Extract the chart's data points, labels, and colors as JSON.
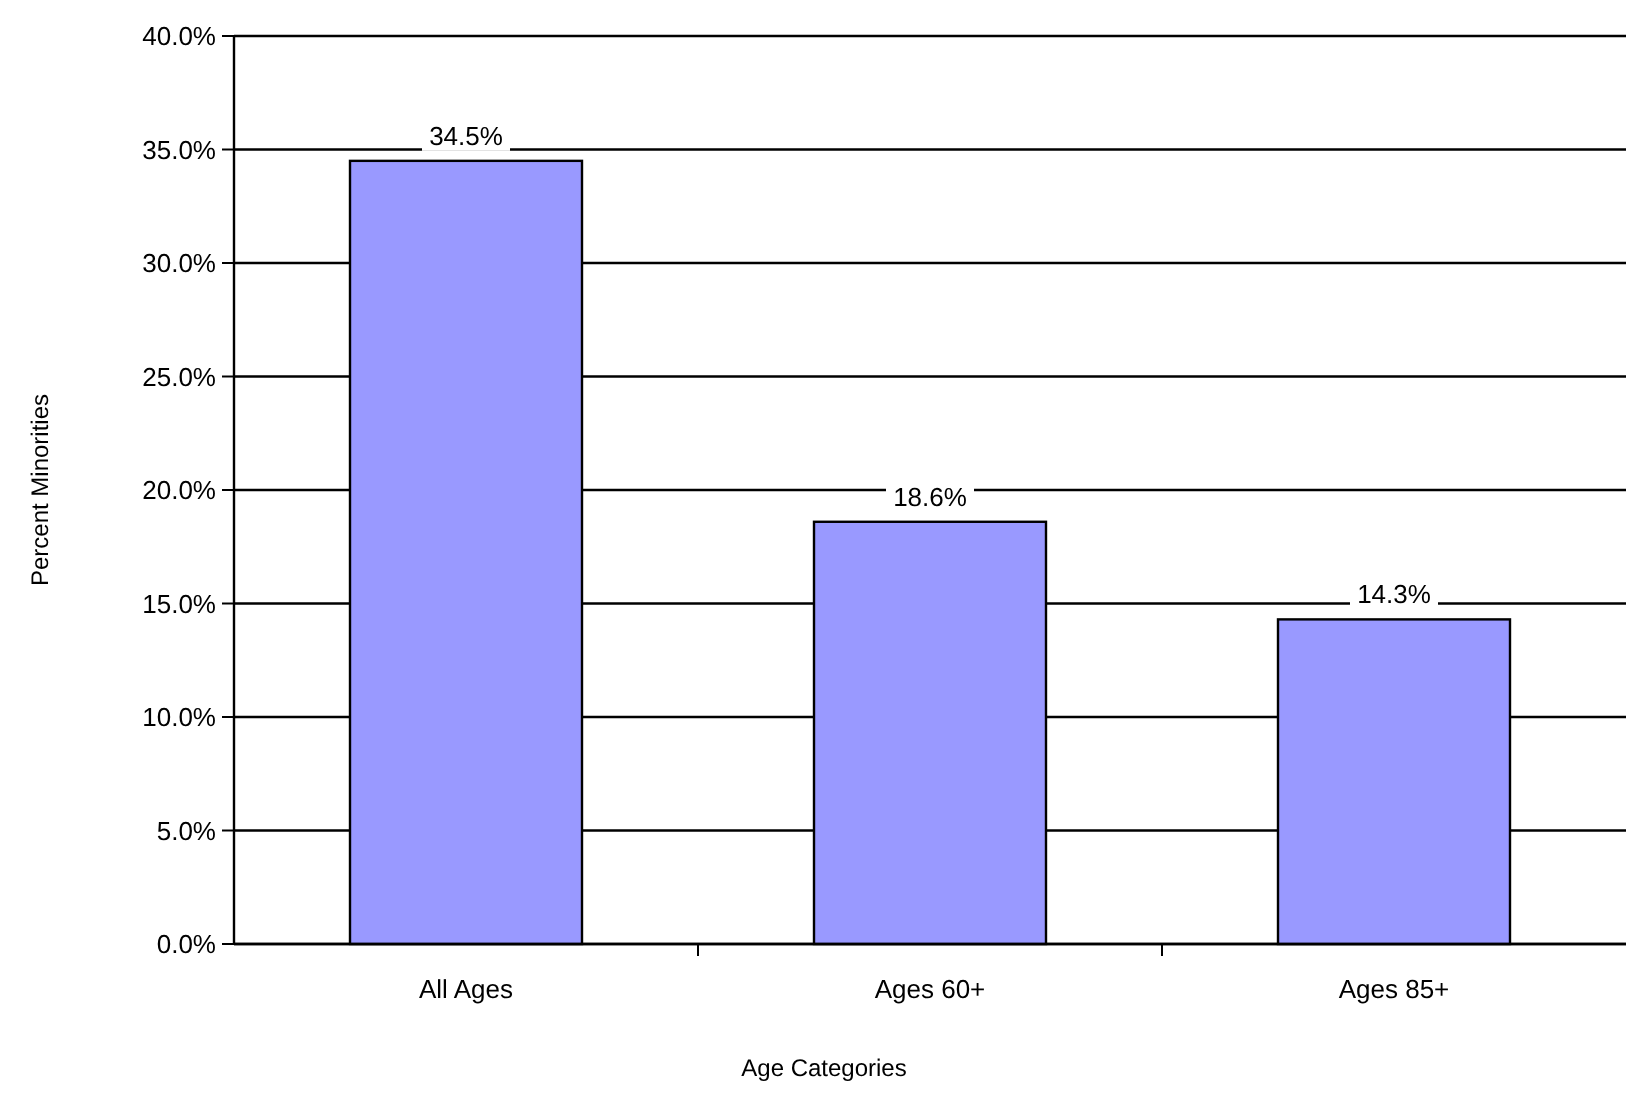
{
  "chart_data": {
    "type": "bar",
    "xlabel": "Age Categories",
    "ylabel": "Percent Minorities",
    "categories": [
      "All Ages",
      "Ages 60+",
      "Ages 85+"
    ],
    "values": [
      34.5,
      18.6,
      14.3
    ],
    "value_labels": [
      "34.5%",
      "18.6%",
      "14.3%"
    ],
    "color": "#9999ff",
    "ylim": [
      0,
      40
    ],
    "yticks": [
      {
        "value": 0,
        "label": "0.0%"
      },
      {
        "value": 5,
        "label": "5.0%"
      },
      {
        "value": 10,
        "label": "10.0%"
      },
      {
        "value": 15,
        "label": "15.0%"
      },
      {
        "value": 20,
        "label": "20.0%"
      },
      {
        "value": 25,
        "label": "25.0%"
      },
      {
        "value": 30,
        "label": "30.0%"
      },
      {
        "value": 35,
        "label": "35.0%"
      },
      {
        "value": 40,
        "label": "40.0%"
      }
    ],
    "grid": "y"
  }
}
